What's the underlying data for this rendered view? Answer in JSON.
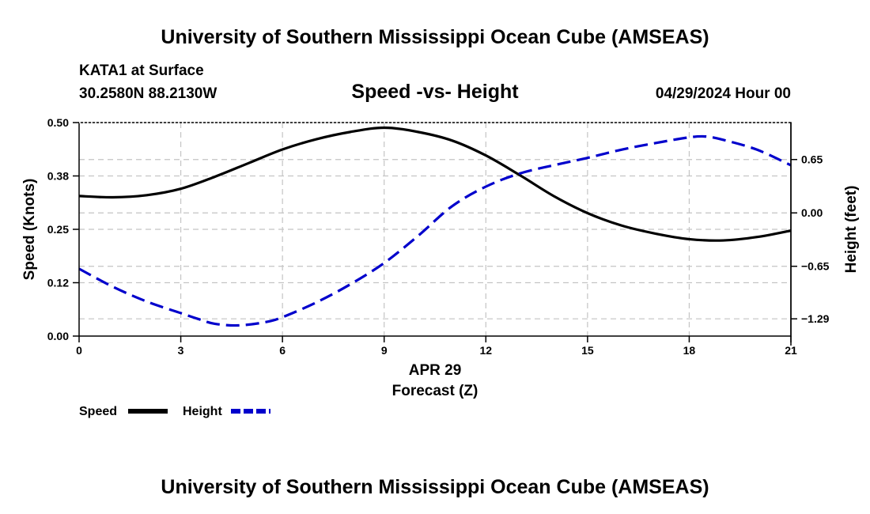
{
  "header": {
    "title": "University of Southern Mississippi Ocean Cube (AMSEAS)",
    "station": "KATA1 at Surface",
    "coords": "30.2580N  88.2130W",
    "datetime": "04/29/2024 Hour 00"
  },
  "footer": {
    "title": "University of Southern Mississippi Ocean Cube (AMSEAS)"
  },
  "chart_data": {
    "type": "line",
    "title": "Speed -vs- Height",
    "xlabel": "Forecast (Z)",
    "xdate": "APR 29",
    "ylabel": "Speed (Knots)",
    "y2label": "Height (feet)",
    "xlim": [
      0,
      21
    ],
    "ylim": [
      0,
      0.5
    ],
    "y2lim": [
      -1.5,
      1.1
    ],
    "xticks": [
      0,
      3,
      6,
      9,
      12,
      15,
      18,
      21
    ],
    "xtick_labels": [
      "0",
      "3",
      "6",
      "9",
      "12",
      "15",
      "18",
      "21"
    ],
    "yticks": [
      0,
      0.125,
      0.25,
      0.375,
      0.5
    ],
    "ytick_labels": [
      "0.00",
      "0.12",
      "0.25",
      "0.38",
      "0.50"
    ],
    "y2ticks": [
      -1.29,
      -0.65,
      0,
      0.65
    ],
    "y2tick_labels": [
      "−1.29",
      "−0.65",
      "0.00",
      "0.65"
    ],
    "grid": true,
    "legend": "bottom-left",
    "series": [
      {
        "name": "Speed",
        "axis": "left",
        "color": "#000000",
        "style": "solid",
        "x": [
          0,
          1,
          2,
          3,
          4,
          5,
          6,
          7,
          8,
          9,
          10,
          11,
          12,
          13,
          14,
          15,
          16,
          17,
          18,
          19,
          20,
          21
        ],
        "values": [
          0.328,
          0.325,
          0.33,
          0.345,
          0.373,
          0.405,
          0.437,
          0.461,
          0.478,
          0.488,
          0.478,
          0.458,
          0.423,
          0.377,
          0.328,
          0.288,
          0.259,
          0.24,
          0.227,
          0.224,
          0.232,
          0.247
        ]
      },
      {
        "name": "Height",
        "axis": "right",
        "color": "#0000cc",
        "style": "dashed",
        "x": [
          0,
          1,
          2,
          3,
          3.5,
          4,
          4.7,
          5.5,
          6,
          7,
          8,
          9,
          10,
          11,
          12,
          13,
          14,
          15,
          16,
          17,
          18,
          18.5,
          19,
          20,
          21
        ],
        "values": [
          -0.68,
          -0.9,
          -1.08,
          -1.22,
          -1.29,
          -1.35,
          -1.37,
          -1.33,
          -1.27,
          -1.09,
          -0.87,
          -0.61,
          -0.28,
          0.08,
          0.32,
          0.48,
          0.58,
          0.67,
          0.77,
          0.85,
          0.92,
          0.93,
          0.89,
          0.77,
          0.58
        ]
      }
    ]
  }
}
